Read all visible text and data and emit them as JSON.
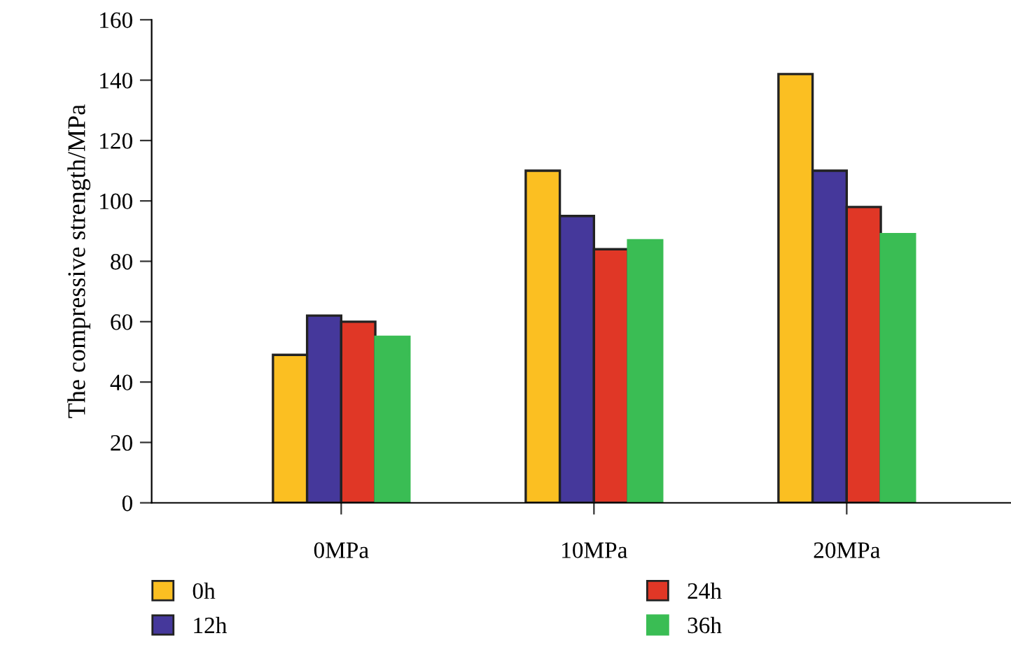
{
  "chart_data": {
    "type": "bar",
    "ylabel": "The compressive strength/MPa",
    "categories": [
      "0MPa",
      "10MPa",
      "20MPa"
    ],
    "series": [
      {
        "name": "0h",
        "color": "#fbbf22",
        "values": [
          49,
          110,
          142
        ]
      },
      {
        "name": "12h",
        "color": "#45389b",
        "values": [
          62,
          95,
          110
        ]
      },
      {
        "name": "24h",
        "color": "#e03726",
        "values": [
          60,
          84,
          98
        ]
      },
      {
        "name": "36h",
        "color": "#3abd54",
        "values": [
          55,
          87,
          89
        ]
      }
    ],
    "ylim": [
      0,
      160
    ],
    "yticks": [
      0,
      20,
      40,
      60,
      80,
      100,
      120,
      140,
      160
    ],
    "grid": false,
    "legend": "bottom"
  }
}
